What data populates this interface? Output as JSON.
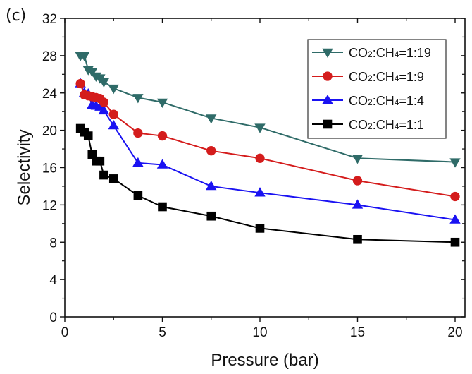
{
  "panel_label": "(c)",
  "chart_data": {
    "type": "line",
    "title": "",
    "xlabel": "Pressure (bar)",
    "ylabel": "Selectivity",
    "xlim": [
      0,
      20.5
    ],
    "ylim": [
      0,
      32
    ],
    "xticks": [
      0,
      5,
      10,
      15,
      20
    ],
    "yticks": [
      0,
      4,
      8,
      12,
      16,
      20,
      24,
      28,
      32
    ],
    "x_minor_step": 2.5,
    "y_minor_step": 2,
    "grid": false,
    "legend_position": "top-right",
    "series": [
      {
        "name": "CO2:CH4=1:19",
        "legend": {
          "a": "CO",
          "sub1": "2",
          "b": ":CH",
          "sub2": "4",
          "c": "=1:19"
        },
        "color": "#2f6b68",
        "marker": "triangle-down",
        "x": [
          0.8,
          1.0,
          1.2,
          1.4,
          1.6,
          1.8,
          2.0,
          2.5,
          3.75,
          5,
          7.5,
          10,
          15,
          20
        ],
        "y": [
          28.0,
          28.0,
          26.5,
          26.3,
          25.8,
          25.6,
          25.2,
          24.5,
          23.5,
          23.0,
          21.3,
          20.3,
          17.0,
          16.6
        ]
      },
      {
        "name": "CO2:CH4=1:9",
        "legend": {
          "a": "CO",
          "sub1": "2",
          "b": ":CH",
          "sub2": "4",
          "c": "=1:9"
        },
        "color": "#d41c1c",
        "marker": "circle",
        "x": [
          0.8,
          1.0,
          1.2,
          1.4,
          1.6,
          1.8,
          2.0,
          2.5,
          3.75,
          5,
          7.5,
          10,
          15,
          20
        ],
        "y": [
          25.0,
          23.8,
          23.7,
          23.6,
          23.5,
          23.4,
          23.0,
          21.7,
          19.7,
          19.4,
          17.8,
          17.0,
          14.6,
          12.9
        ]
      },
      {
        "name": "CO2:CH4=1:4",
        "legend": {
          "a": "CO",
          "sub1": "2",
          "b": ":CH",
          "sub2": "4",
          "c": "=1:4"
        },
        "color": "#1a12f2",
        "marker": "triangle-up",
        "x": [
          0.8,
          1.0,
          1.2,
          1.4,
          1.6,
          1.8,
          2.0,
          2.5,
          3.75,
          5,
          7.5,
          10,
          15,
          20
        ],
        "y": [
          25.0,
          24.0,
          23.9,
          22.7,
          22.6,
          22.5,
          22.1,
          20.5,
          16.5,
          16.3,
          14.0,
          13.3,
          12.0,
          10.4
        ]
      },
      {
        "name": "CO2:CH4=1:1",
        "legend": {
          "a": "CO",
          "sub1": "2",
          "b": ":CH",
          "sub2": "4",
          "c": "=1:1"
        },
        "color": "#000000",
        "marker": "square",
        "x": [
          0.8,
          1.0,
          1.2,
          1.4,
          1.6,
          1.8,
          2.0,
          2.5,
          3.75,
          5,
          7.5,
          10,
          15,
          20
        ],
        "y": [
          20.2,
          19.8,
          19.4,
          17.4,
          16.7,
          16.7,
          15.2,
          14.8,
          13.0,
          11.8,
          10.8,
          9.5,
          8.3,
          8.0
        ]
      }
    ]
  }
}
